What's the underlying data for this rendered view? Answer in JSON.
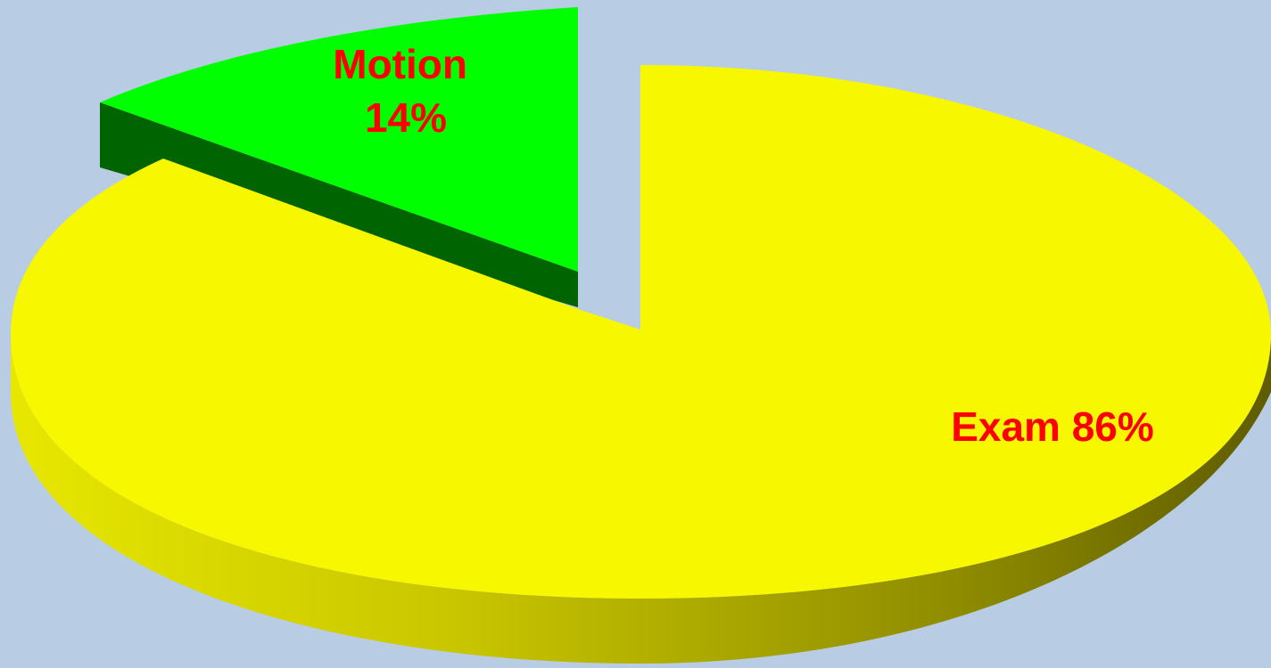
{
  "chart_data": {
    "type": "pie",
    "style": "3d-exploded",
    "slices": [
      {
        "name": "Motion",
        "value": 14,
        "pct_label": "14%",
        "color": "#00ff00",
        "side_color": "#006400"
      },
      {
        "name": "Exam",
        "value": 86,
        "pct_label": "86%",
        "color": "#f7f700",
        "side_color": "#6b6800"
      }
    ],
    "label_color": "#ff0000",
    "background": "#b8cce4"
  }
}
